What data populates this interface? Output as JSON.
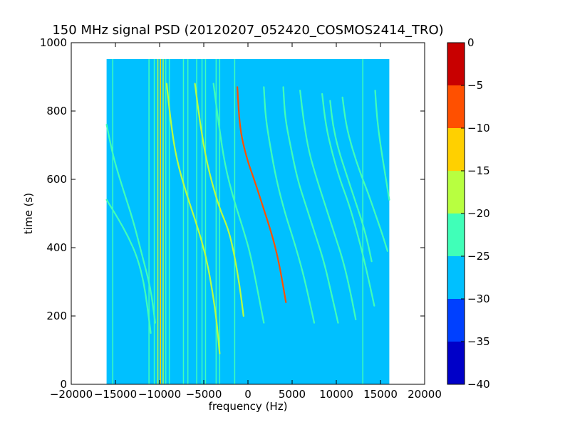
{
  "chart_data": {
    "type": "heatmap",
    "title": "150 MHz signal PSD (20120207_052420_COSMOS2414_TRO)",
    "xlabel": "frequency (Hz)",
    "ylabel": "time (s)",
    "xlim": [
      -20000,
      20000
    ],
    "ylim": [
      0,
      1000
    ],
    "xticks": [
      -20000,
      -15000,
      -10000,
      -5000,
      0,
      5000,
      10000,
      15000,
      20000
    ],
    "xtick_labels": [
      "−20000",
      "−15000",
      "−10000",
      "−5000",
      "0",
      "5000",
      "10000",
      "15000",
      "20000"
    ],
    "yticks": [
      0,
      200,
      400,
      600,
      800,
      1000
    ],
    "ytick_labels": [
      "0",
      "200",
      "400",
      "600",
      "800",
      "1000"
    ],
    "data_extent": {
      "x": [
        -16000,
        16000
      ],
      "y": [
        0,
        952
      ]
    },
    "background_level_color": "#00c0ff",
    "colorbar": {
      "range": [
        -40,
        0
      ],
      "ticks": [
        0,
        -5,
        -10,
        -15,
        -20,
        -25,
        -30,
        -35,
        -40
      ],
      "tick_labels": [
        "0",
        "−5",
        "−10",
        "−15",
        "−20",
        "−25",
        "−30",
        "−35",
        "−40"
      ],
      "levels": [
        {
          "from": -40,
          "to": -35,
          "color": "#0000c8"
        },
        {
          "from": -35,
          "to": -30,
          "color": "#0040ff"
        },
        {
          "from": -30,
          "to": -25,
          "color": "#00c0ff"
        },
        {
          "from": -25,
          "to": -20,
          "color": "#40ffb8"
        },
        {
          "from": -20,
          "to": -15,
          "color": "#b8ff40"
        },
        {
          "from": -15,
          "to": -10,
          "color": "#ffd000"
        },
        {
          "from": -10,
          "to": -5,
          "color": "#ff5000"
        },
        {
          "from": -5,
          "to": 0,
          "color": "#c80000"
        }
      ]
    },
    "vertical_lines": [
      {
        "x": -15300,
        "y": [
          0,
          952
        ],
        "color": "#40ffb8"
      },
      {
        "x": -11200,
        "y": [
          0,
          952
        ],
        "color": "#40ffb8"
      },
      {
        "x": -10600,
        "y": [
          0,
          952
        ],
        "color": "#40ffb8"
      },
      {
        "x": -10200,
        "y": [
          0,
          952
        ],
        "color": "#b8ff40"
      },
      {
        "x": -9900,
        "y": [
          0,
          952
        ],
        "color": "#ffd000"
      },
      {
        "x": -9600,
        "y": [
          0,
          952
        ],
        "color": "#b8ff40"
      },
      {
        "x": -9300,
        "y": [
          0,
          952
        ],
        "color": "#40ffb8"
      },
      {
        "x": -8900,
        "y": [
          0,
          952
        ],
        "color": "#40ffb8"
      },
      {
        "x": -7300,
        "y": [
          0,
          952
        ],
        "color": "#40ffb8"
      },
      {
        "x": -6800,
        "y": [
          0,
          952
        ],
        "color": "#40ffb8"
      },
      {
        "x": -5800,
        "y": [
          0,
          952
        ],
        "color": "#40ffb8"
      },
      {
        "x": -5200,
        "y": [
          0,
          952
        ],
        "color": "#40ffb8"
      },
      {
        "x": -4800,
        "y": [
          0,
          952
        ],
        "color": "#40ffb8"
      },
      {
        "x": -3600,
        "y": [
          0,
          952
        ],
        "color": "#40ffb8"
      },
      {
        "x": -3200,
        "y": [
          0,
          952
        ],
        "color": "#40ffb8"
      },
      {
        "x": -1500,
        "y": [
          0,
          952
        ],
        "color": "#40ffb8"
      },
      {
        "x": 13000,
        "y": [
          0,
          952
        ],
        "color": "#40ffb8"
      }
    ],
    "curves": [
      {
        "color": "#40ffb8",
        "points": [
          [
            -16000,
            760
          ],
          [
            -15200,
            660
          ],
          [
            -14000,
            560
          ],
          [
            -13000,
            480
          ],
          [
            -12000,
            380
          ],
          [
            -11000,
            280
          ],
          [
            -10500,
            180
          ]
        ]
      },
      {
        "color": "#40ffb8",
        "points": [
          [
            -16000,
            540
          ],
          [
            -14800,
            490
          ],
          [
            -13500,
            430
          ],
          [
            -12500,
            370
          ],
          [
            -11800,
            300
          ],
          [
            -11400,
            230
          ],
          [
            -11000,
            150
          ]
        ]
      },
      {
        "color": "#b8ff40",
        "points": [
          [
            -9200,
            880
          ],
          [
            -8700,
            760
          ],
          [
            -8100,
            660
          ],
          [
            -7000,
            560
          ],
          [
            -5700,
            460
          ],
          [
            -4800,
            380
          ],
          [
            -4200,
            300
          ],
          [
            -3600,
            200
          ],
          [
            -3200,
            90
          ]
        ]
      },
      {
        "color": "#b8ff40",
        "points": [
          [
            -6000,
            880
          ],
          [
            -5400,
            760
          ],
          [
            -4600,
            640
          ],
          [
            -3300,
            520
          ],
          [
            -2300,
            460
          ],
          [
            -1700,
            400
          ],
          [
            -1000,
            300
          ],
          [
            -500,
            200
          ]
        ]
      },
      {
        "color": "#40ffb8",
        "points": [
          [
            -3900,
            880
          ],
          [
            -3300,
            760
          ],
          [
            -2600,
            640
          ],
          [
            -1600,
            540
          ],
          [
            -600,
            460
          ],
          [
            300,
            380
          ],
          [
            1200,
            260
          ],
          [
            1800,
            180
          ]
        ]
      },
      {
        "color": "#ff5000",
        "points": [
          [
            -1200,
            870
          ],
          [
            -1000,
            780
          ],
          [
            -700,
            720
          ],
          [
            0,
            650
          ],
          [
            700,
            600
          ],
          [
            1700,
            520
          ],
          [
            2700,
            440
          ],
          [
            3400,
            370
          ],
          [
            3900,
            300
          ],
          [
            4300,
            240
          ]
        ]
      },
      {
        "color": "#40ffb8",
        "points": [
          [
            1800,
            870
          ],
          [
            2000,
            780
          ],
          [
            2500,
            700
          ],
          [
            3200,
            600
          ],
          [
            4200,
            500
          ],
          [
            5200,
            420
          ],
          [
            6200,
            330
          ],
          [
            7000,
            240
          ],
          [
            7500,
            180
          ]
        ]
      },
      {
        "color": "#40ffb8",
        "points": [
          [
            4000,
            870
          ],
          [
            4200,
            780
          ],
          [
            4800,
            700
          ],
          [
            5600,
            600
          ],
          [
            6600,
            520
          ],
          [
            7600,
            440
          ],
          [
            8600,
            360
          ],
          [
            9500,
            260
          ],
          [
            10200,
            180
          ]
        ]
      },
      {
        "color": "#40ffb8",
        "points": [
          [
            5900,
            860
          ],
          [
            6300,
            770
          ],
          [
            6900,
            680
          ],
          [
            7800,
            600
          ],
          [
            8800,
            520
          ],
          [
            9800,
            440
          ],
          [
            10800,
            360
          ],
          [
            11600,
            270
          ],
          [
            12200,
            190
          ]
        ]
      },
      {
        "color": "#40ffb8",
        "points": [
          [
            8400,
            850
          ],
          [
            8800,
            760
          ],
          [
            9500,
            680
          ],
          [
            10400,
            600
          ],
          [
            11400,
            530
          ],
          [
            12300,
            450
          ],
          [
            13100,
            370
          ],
          [
            13800,
            290
          ],
          [
            14300,
            230
          ]
        ]
      },
      {
        "color": "#40ffb8",
        "points": [
          [
            10700,
            840
          ],
          [
            11100,
            760
          ],
          [
            11800,
            690
          ],
          [
            12700,
            620
          ],
          [
            13600,
            560
          ],
          [
            14400,
            500
          ],
          [
            15200,
            440
          ],
          [
            15800,
            390
          ]
        ]
      },
      {
        "color": "#40ffb8",
        "points": [
          [
            14400,
            860
          ],
          [
            14600,
            780
          ],
          [
            15000,
            700
          ],
          [
            15500,
            620
          ],
          [
            16000,
            540
          ]
        ]
      },
      {
        "color": "#40ffb8",
        "points": [
          [
            9300,
            830
          ],
          [
            9600,
            760
          ],
          [
            10200,
            690
          ],
          [
            11200,
            610
          ],
          [
            12100,
            540
          ],
          [
            13000,
            470
          ],
          [
            13600,
            410
          ],
          [
            14000,
            360
          ]
        ]
      }
    ]
  }
}
